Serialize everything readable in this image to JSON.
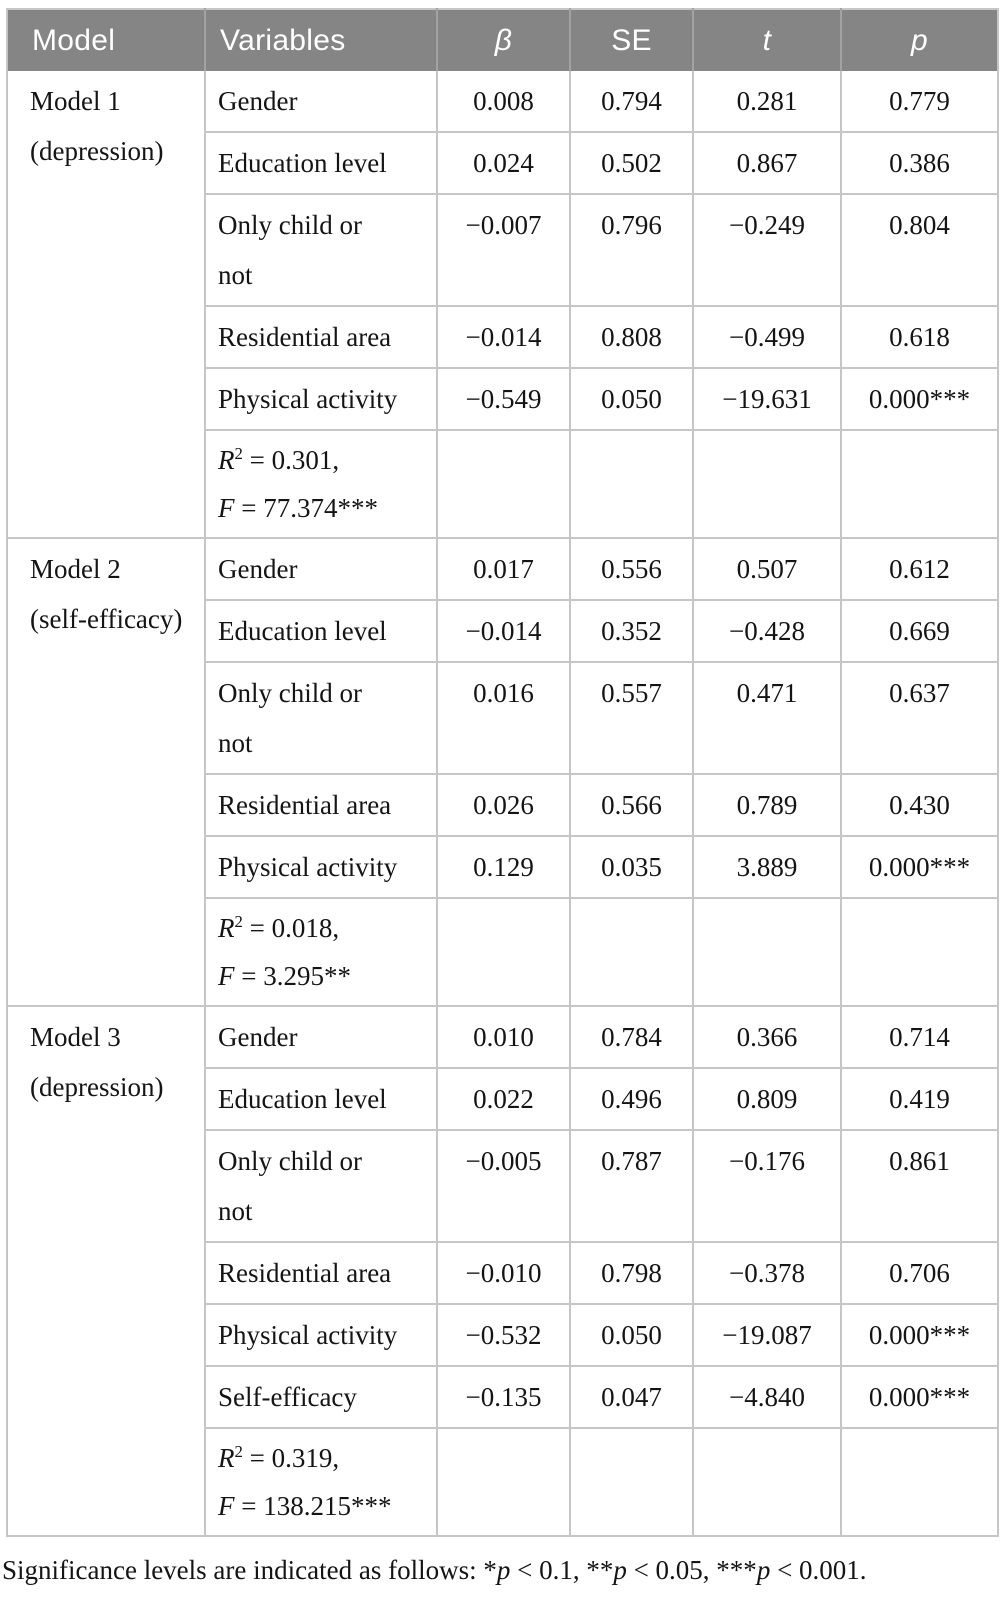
{
  "theme": {
    "header_bg": "#858585",
    "header_fg": "#ffffff",
    "grid_line": "#c6c6c6",
    "header_divider": "#a2a2a2",
    "body_text": "#141414"
  },
  "table": {
    "header": {
      "columns": [
        "Model",
        "Variables",
        "β",
        "SE",
        "t",
        "p"
      ]
    },
    "models": [
      {
        "name_lines": [
          "Model 1",
          "(depression)"
        ],
        "rows": [
          {
            "lines": [
              "Gender"
            ],
            "beta": "0.008",
            "se": "0.794",
            "t": "0.281",
            "p": "0.779"
          },
          {
            "lines": [
              "Education level"
            ],
            "beta": "0.024",
            "se": "0.502",
            "t": "0.867",
            "p": "0.386"
          },
          {
            "lines": [
              "Only child or",
              "not"
            ],
            "beta": "−0.007",
            "se": "0.796",
            "t": "−0.249",
            "p": "0.804"
          },
          {
            "lines": [
              "Residential area"
            ],
            "beta": "−0.014",
            "se": "0.808",
            "t": "−0.499",
            "p": "0.618"
          },
          {
            "lines": [
              "Physical activity"
            ],
            "beta": "−0.549",
            "se": "0.050",
            "t": "−19.631",
            "p": "0.000***"
          }
        ],
        "stats": {
          "r_label": "R",
          "r_sup": "2",
          "r_eq": " = 0.301,",
          "f_label": "F",
          "f_eq": " = 77.374***"
        }
      },
      {
        "name_lines": [
          "Model 2",
          "(self-efficacy)"
        ],
        "rows": [
          {
            "lines": [
              "Gender"
            ],
            "beta": "0.017",
            "se": "0.556",
            "t": "0.507",
            "p": "0.612"
          },
          {
            "lines": [
              "Education level"
            ],
            "beta": "−0.014",
            "se": "0.352",
            "t": "−0.428",
            "p": "0.669"
          },
          {
            "lines": [
              "Only child or",
              "not"
            ],
            "beta": "0.016",
            "se": "0.557",
            "t": "0.471",
            "p": "0.637"
          },
          {
            "lines": [
              "Residential area"
            ],
            "beta": "0.026",
            "se": "0.566",
            "t": "0.789",
            "p": "0.430"
          },
          {
            "lines": [
              "Physical activity"
            ],
            "beta": "0.129",
            "se": "0.035",
            "t": "3.889",
            "p": "0.000***"
          }
        ],
        "stats": {
          "r_label": "R",
          "r_sup": "2",
          "r_eq": " = 0.018,",
          "f_label": "F",
          "f_eq": " = 3.295**"
        }
      },
      {
        "name_lines": [
          "Model 3",
          "(depression)"
        ],
        "rows": [
          {
            "lines": [
              "Gender"
            ],
            "beta": "0.010",
            "se": "0.784",
            "t": "0.366",
            "p": "0.714"
          },
          {
            "lines": [
              "Education level"
            ],
            "beta": "0.022",
            "se": "0.496",
            "t": "0.809",
            "p": "0.419"
          },
          {
            "lines": [
              "Only child or",
              "not"
            ],
            "beta": "−0.005",
            "se": "0.787",
            "t": "−0.176",
            "p": "0.861"
          },
          {
            "lines": [
              "Residential area"
            ],
            "beta": "−0.010",
            "se": "0.798",
            "t": "−0.378",
            "p": "0.706"
          },
          {
            "lines": [
              "Physical activity"
            ],
            "beta": "−0.532",
            "se": "0.050",
            "t": "−19.087",
            "p": "0.000***"
          },
          {
            "lines": [
              "Self-efficacy"
            ],
            "beta": "−0.135",
            "se": "0.047",
            "t": "−4.840",
            "p": "0.000***"
          }
        ],
        "stats": {
          "r_label": "R",
          "r_sup": "2",
          "r_eq": " = 0.319,",
          "f_label": "F",
          "f_eq": " = 138.215***"
        }
      }
    ]
  },
  "footnote": {
    "parts": [
      {
        "text": "Significance levels are indicated as follows: *",
        "italic": false
      },
      {
        "text": "p",
        "italic": true
      },
      {
        "text": " < 0.1, **",
        "italic": false
      },
      {
        "text": "p",
        "italic": true
      },
      {
        "text": " < 0.05, ***",
        "italic": false
      },
      {
        "text": "p",
        "italic": true
      },
      {
        "text": " < 0.001.",
        "italic": false
      }
    ]
  }
}
